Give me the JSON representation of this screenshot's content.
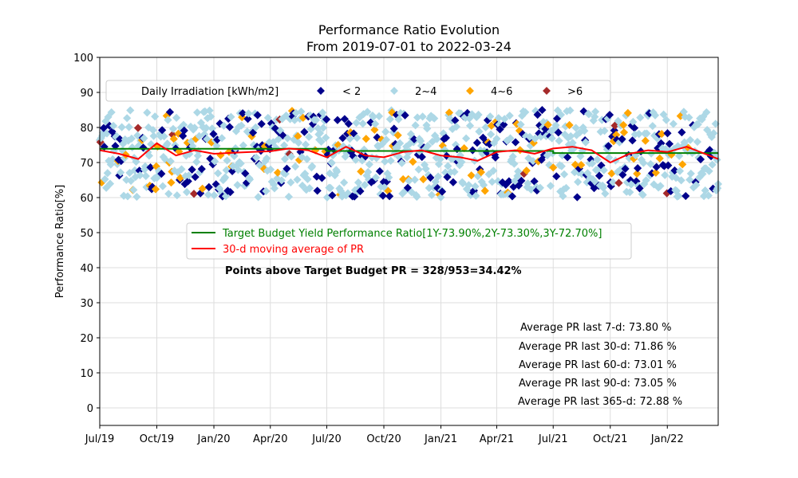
{
  "chart_data": {
    "type": "scatter",
    "title": "Performance Ratio Evolution",
    "subtitle": "From 2019-07-01 to 2022-03-24",
    "xlabel": "",
    "ylabel": "Performance Ratio[%]",
    "xlim": [
      "2019-07-01",
      "2022-03-24"
    ],
    "ylim": [
      -5,
      100
    ],
    "yticks": [
      0,
      10,
      20,
      30,
      40,
      50,
      60,
      70,
      80,
      90,
      100
    ],
    "xticks": [
      {
        "date": "2019-07-01",
        "label": "Jul/19"
      },
      {
        "date": "2019-10-01",
        "label": "Oct/19"
      },
      {
        "date": "2020-01-01",
        "label": "Jan/20"
      },
      {
        "date": "2020-04-01",
        "label": "Apr/20"
      },
      {
        "date": "2020-07-01",
        "label": "Jul/20"
      },
      {
        "date": "2020-10-01",
        "label": "Oct/20"
      },
      {
        "date": "2021-01-01",
        "label": "Jan/21"
      },
      {
        "date": "2021-04-01",
        "label": "Apr/21"
      },
      {
        "date": "2021-07-01",
        "label": "Jul/21"
      },
      {
        "date": "2021-10-01",
        "label": "Oct/21"
      },
      {
        "date": "2022-01-01",
        "label": "Jan/22"
      }
    ],
    "grid": true,
    "irradiation_legend": {
      "title": "Daily Irradiation [kWh/m2]",
      "placement": "top",
      "categories": [
        {
          "label": "< 2",
          "color": "#00008b"
        },
        {
          "label": "2~4",
          "color": "#add8e6"
        },
        {
          "label": "4~6",
          "color": "#ffa500"
        },
        {
          "label": ">6",
          "color": "#a52a2a"
        }
      ]
    },
    "series": [
      {
        "name": "Target Budget Yield Performance Ratio[1Y-73.90%,2Y-73.30%,3Y-72.70%]",
        "color": "#008000",
        "x": [
          "2019-07-01",
          "2020-07-01",
          "2020-07-01",
          "2021-07-01",
          "2021-07-01",
          "2022-03-24"
        ],
        "y": [
          73.9,
          73.9,
          73.3,
          73.3,
          72.7,
          72.7
        ]
      },
      {
        "name": "30-d moving average of PR",
        "color": "#ff0000",
        "x": [
          "2019-07-01",
          "2019-08-01",
          "2019-09-01",
          "2019-10-01",
          "2019-11-01",
          "2019-12-01",
          "2020-01-01",
          "2020-02-01",
          "2020-03-01",
          "2020-04-01",
          "2020-05-01",
          "2020-06-01",
          "2020-07-01",
          "2020-08-01",
          "2020-09-01",
          "2020-10-01",
          "2020-11-01",
          "2020-12-01",
          "2021-01-01",
          "2021-02-01",
          "2021-03-01",
          "2021-04-01",
          "2021-05-01",
          "2021-06-01",
          "2021-07-01",
          "2021-08-01",
          "2021-09-01",
          "2021-10-01",
          "2021-11-01",
          "2021-12-01",
          "2022-01-01",
          "2022-02-01",
          "2022-03-24"
        ],
        "y": [
          73.5,
          72.5,
          71.0,
          75.5,
          72.0,
          73.5,
          72.5,
          72.8,
          73.0,
          73.2,
          74.0,
          73.5,
          71.5,
          74.5,
          72.0,
          71.5,
          73.0,
          73.5,
          72.0,
          71.5,
          70.5,
          73.0,
          73.5,
          72.5,
          74.0,
          74.5,
          73.5,
          70.0,
          72.5,
          73.5,
          73.0,
          74.5,
          71.0
        ]
      }
    ],
    "point_counts": {
      "above_target": 328,
      "total": 953
    }
  },
  "annotations": {
    "points_above": "Points above Target Budget PR = 328/953=34.42%",
    "averages": [
      "Average PR last 7-d: 73.80 %",
      "Average PR last 30-d: 71.86 %",
      "Average PR last 60-d: 73.01 %",
      "Average PR last 90-d: 73.05 %",
      "Average PR last 365-d: 72.88 %"
    ]
  }
}
